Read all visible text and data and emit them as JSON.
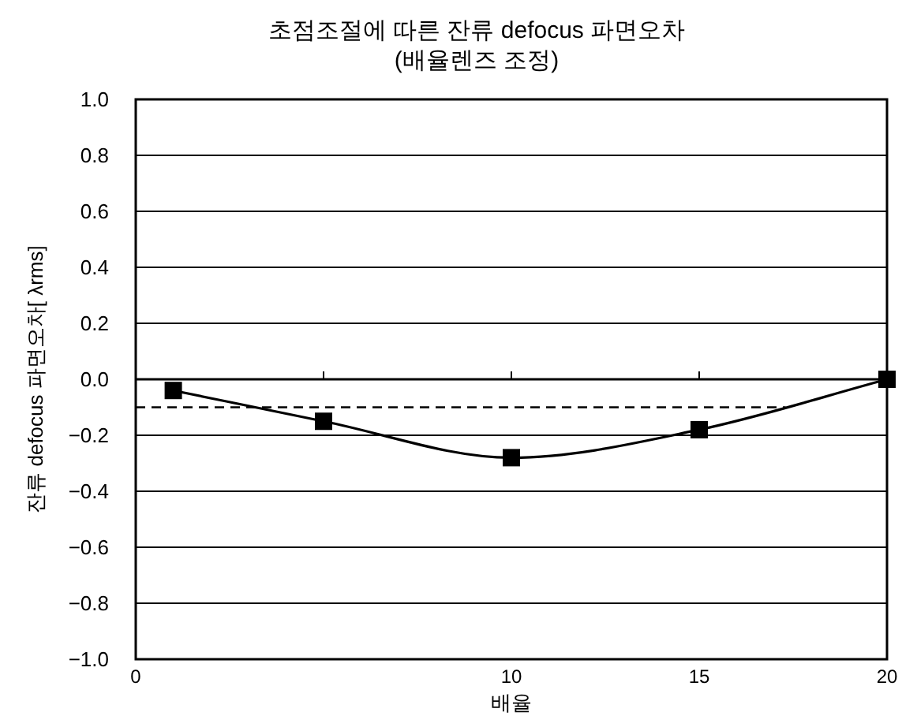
{
  "chart_data": {
    "type": "line",
    "title": "초점조절에 따른 잔류 defocus 파면오차",
    "subtitle": "(배율렌즈 조정)",
    "xlabel": "배율",
    "ylabel": "잔류 defocus 파면오차[ λrms]",
    "xlim": [
      0,
      20
    ],
    "xticks": [
      0,
      {
        "value": 5,
        "label": null
      },
      10,
      15,
      20
    ],
    "ylim": [
      -1,
      1
    ],
    "yticks": [
      {
        "value": -1,
        "label": "−1.0"
      },
      {
        "value": -0.8,
        "label": "−0.8"
      },
      {
        "value": -0.6,
        "label": "−0.6"
      },
      {
        "value": -0.4,
        "label": "−0.4"
      },
      {
        "value": -0.2,
        "label": "−0.2"
      },
      {
        "value": 0,
        "label": "0.0"
      },
      {
        "value": 0.2,
        "label": "0.2"
      },
      {
        "value": 0.4,
        "label": "0.4"
      },
      {
        "value": 0.6,
        "label": "0.6"
      },
      {
        "value": 0.8,
        "label": "0.8"
      },
      {
        "value": 1,
        "label": "1.0"
      }
    ],
    "grid": "y",
    "series": [
      {
        "color": "#000000",
        "x": [
          0,
          17.3
        ],
        "values": [
          -0.1,
          -0.1
        ],
        "marker": "none",
        "line_style": "dashed"
      },
      {
        "color": "#000000",
        "x": [
          1,
          5,
          10,
          15,
          20
        ],
        "values": [
          -0.04,
          -0.15,
          -0.28,
          -0.18,
          0.0
        ],
        "marker": "square",
        "line_style": "solid"
      }
    ]
  }
}
